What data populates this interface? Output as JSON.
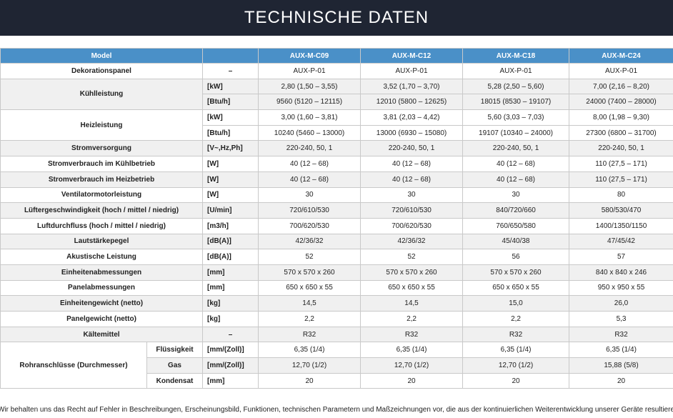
{
  "title": "TECHNISCHE DATEN",
  "header": {
    "model_label": "Model",
    "unit_label": "",
    "models": [
      "AUX-M-C09",
      "AUX-M-C12",
      "AUX-M-C18",
      "AUX-M-C24"
    ]
  },
  "rows": [
    {
      "label": "Dekorationspanel",
      "unit": "–",
      "values": [
        "AUX-P-01",
        "AUX-P-01",
        "AUX-P-01",
        "AUX-P-01"
      ]
    },
    {
      "label": "Kühlleistung",
      "unit": "[kW]",
      "values": [
        "2,80 (1,50 – 3,55)",
        "3,52 (1,70 – 3,70)",
        "5,28 (2,50 – 5,60)",
        "7,00 (2,16 – 8,20)"
      ]
    },
    {
      "label": "",
      "unit": "[Btu/h]",
      "values": [
        "9560 (5120 – 12115)",
        "12010 (5800 – 12625)",
        "18015 (8530 – 19107)",
        "24000 (7400 – 28000)"
      ]
    },
    {
      "label": "Heizleistung",
      "unit": "[kW]",
      "values": [
        "3,00 (1,60 – 3,81)",
        "3,81 (2,03 – 4,42)",
        "5,60 (3,03 – 7,03)",
        "8,00 (1,98 – 9,30)"
      ]
    },
    {
      "label": "",
      "unit": "[Btu/h]",
      "values": [
        "10240 (5460 – 13000)",
        "13000 (6930 – 15080)",
        "19107 (10340 – 24000)",
        "27300 (6800 – 31700)"
      ]
    },
    {
      "label": "Stromversorgung",
      "unit": "[V~,Hz,Ph]",
      "values": [
        "220-240, 50, 1",
        "220-240, 50, 1",
        "220-240, 50, 1",
        "220-240, 50, 1"
      ]
    },
    {
      "label": "Stromverbrauch im Kühlbetrieb",
      "unit": "[W]",
      "values": [
        "40 (12 – 68)",
        "40 (12 – 68)",
        "40 (12 – 68)",
        "110 (27,5 – 171)"
      ]
    },
    {
      "label": "Stromverbrauch im Heizbetrieb",
      "unit": "[W]",
      "values": [
        "40 (12 – 68)",
        "40 (12 – 68)",
        "40 (12 – 68)",
        "110 (27,5 – 171)"
      ]
    },
    {
      "label": "Ventilatormotorleistung",
      "unit": "[W]",
      "values": [
        "30",
        "30",
        "30",
        "80"
      ]
    },
    {
      "label": "Lüftergeschwindigkeit (hoch / mittel / niedrig)",
      "unit": "[U/min]",
      "values": [
        "720/610/530",
        "720/610/530",
        "840/720/660",
        "580/530/470"
      ]
    },
    {
      "label": "Luftdurchfluss (hoch / mittel / niedrig)",
      "unit": "[m3/h]",
      "values": [
        "700/620/530",
        "700/620/530",
        "760/650/580",
        "1400/1350/1150"
      ]
    },
    {
      "label": "Lautstärkepegel",
      "unit": "[dB(A)]",
      "values": [
        "42/36/32",
        "42/36/32",
        "45/40/38",
        "47/45/42"
      ]
    },
    {
      "label": "Akustische Leistung",
      "unit": "[dB(A)]",
      "values": [
        "52",
        "52",
        "56",
        "57"
      ]
    },
    {
      "label": "Einheitenabmessungen",
      "unit": "[mm]",
      "values": [
        "570 x 570 x 260",
        "570 x 570 x 260",
        "570 x 570 x 260",
        "840 x 840 x 246"
      ]
    },
    {
      "label": "Panelabmessungen",
      "unit": "[mm]",
      "values": [
        "650 x 650 x 55",
        "650 x 650 x 55",
        "650 x 650 x 55",
        "950 x 950 x 55"
      ]
    },
    {
      "label": "Einheitengewicht (netto)",
      "unit": "[kg]",
      "values": [
        "14,5",
        "14,5",
        "15,0",
        "26,0"
      ]
    },
    {
      "label": "Panelgewicht (netto)",
      "unit": "[kg]",
      "values": [
        "2,2",
        "2,2",
        "2,2",
        "5,3"
      ]
    },
    {
      "label": "Kältemittel",
      "unit": "–",
      "values": [
        "R32",
        "R32",
        "R32",
        "R32"
      ]
    }
  ],
  "pipe": {
    "label": "Rohranschlüsse (Durchmesser)",
    "rows": [
      {
        "sub": "Flüssigkeit",
        "unit": "[mm/(Zoll)]",
        "values": [
          "6,35 (1/4)",
          "6,35 (1/4)",
          "6,35 (1/4)",
          "6,35 (1/4)"
        ]
      },
      {
        "sub": "Gas",
        "unit": "[mm/(Zoll)]",
        "values": [
          "12,70 (1/2)",
          "12,70 (1/2)",
          "12,70 (1/2)",
          "15,88 (5/8)"
        ]
      },
      {
        "sub": "Kondensat",
        "unit": "[mm]",
        "values": [
          "20",
          "20",
          "20",
          "20"
        ]
      }
    ]
  },
  "footnote": "Wir behalten uns das Recht auf Fehler in Beschreibungen, Erscheinungsbild, Funktionen, technischen Parametern und Maßzeichnungen vor, die aus der kontinuierlichen Weiterentwicklung unserer Geräte resultieren."
}
